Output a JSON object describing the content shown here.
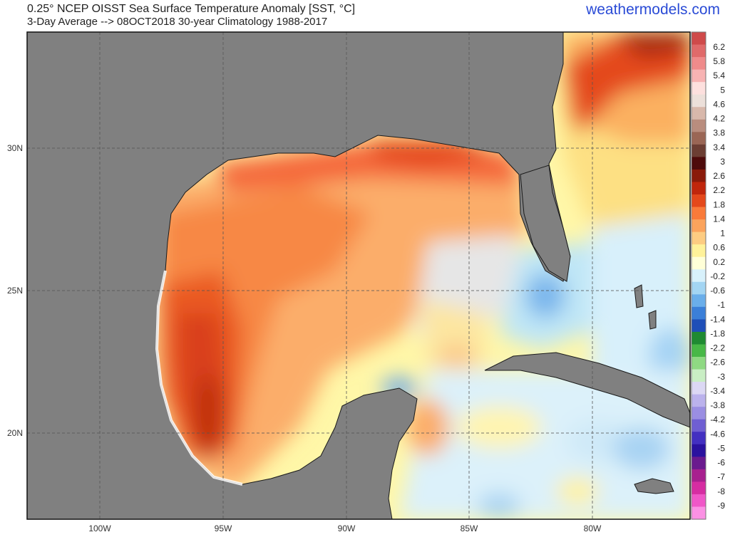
{
  "header": {
    "title": "0.25° NCEP OISST Sea Surface Temperature Anomaly [SST, °C]",
    "subtitle": "3-Day Average --> 08OCT2018   30-year Climatology 1988-2017",
    "brand": "weathermodels.com"
  },
  "map": {
    "lon_ticks": [
      "100W",
      "95W",
      "90W",
      "85W",
      "80W"
    ],
    "lat_ticks": [
      "30N",
      "25N",
      "20N"
    ],
    "land_color": "#808080",
    "border_color": "#1a1a1a"
  },
  "colorbar": {
    "labels": [
      "6.2",
      "5.8",
      "5.4",
      "5",
      "4.6",
      "4.2",
      "3.8",
      "3.4",
      "3",
      "2.6",
      "2.2",
      "1.8",
      "1.4",
      "1",
      "0.6",
      "0.2",
      "-0.2",
      "-0.6",
      "-1",
      "-1.4",
      "-1.8",
      "-2.2",
      "-2.6",
      "-3",
      "-3.4",
      "-3.8",
      "-4.2",
      "-4.6",
      "-5",
      "-6",
      "-7",
      "-8",
      "-9"
    ],
    "colors": [
      "#cf4a4a",
      "#e06a6a",
      "#ef8b8b",
      "#f7b3b3",
      "#fde0de",
      "#ece0da",
      "#d8b8ab",
      "#b98d7e",
      "#9a6655",
      "#6c3e33",
      "#4e0b0b",
      "#8a1a0a",
      "#c0260c",
      "#e4481b",
      "#f97a3a",
      "#fba35c",
      "#fdcc82",
      "#fff29a",
      "#ffffd8",
      "#d8f1fb",
      "#a3d5f3",
      "#6aaeea",
      "#3b7fd8",
      "#1f4fb8",
      "#1f8a32",
      "#48b847",
      "#8fd983",
      "#c9eec4",
      "#dcd8f4",
      "#bbb2ec",
      "#9a8ee2",
      "#6f5fd2",
      "#4330c1",
      "#2a129f",
      "#6a1a8e",
      "#a8208f",
      "#d62da2",
      "#f057c8",
      "#fb91e4"
    ]
  }
}
